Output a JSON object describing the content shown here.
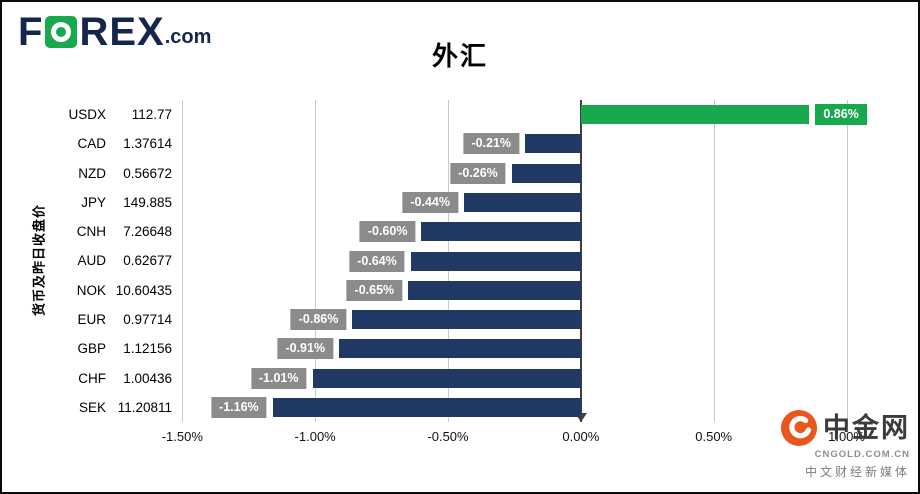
{
  "header": {
    "logo_f": "F",
    "logo_rest": "REX",
    "logo_suffix": ".com",
    "title": "外汇"
  },
  "chart_data": {
    "type": "bar",
    "orientation": "horizontal",
    "title": "外汇",
    "ylabel": "货币及昨日收盘价",
    "xlim": [
      -1.52,
      1.22
    ],
    "xticks": [
      -1.5,
      -1.0,
      -0.5,
      0.0,
      0.5,
      1.0
    ],
    "xtick_labels": [
      "-1.50%",
      "-1.00%",
      "-0.50%",
      "0.00%",
      "0.50%",
      "1.00%"
    ],
    "bar_color": "#1f3864",
    "positive_color": "#18a84d",
    "label_box_color": "#8b8b8b",
    "rows": [
      {
        "code": "USDX",
        "price": "112.77",
        "change": 0.86,
        "label": "0.86%"
      },
      {
        "code": "CAD",
        "price": "1.37614",
        "change": -0.21,
        "label": "-0.21%"
      },
      {
        "code": "NZD",
        "price": "0.56672",
        "change": -0.26,
        "label": "-0.26%"
      },
      {
        "code": "JPY",
        "price": "149.885",
        "change": -0.44,
        "label": "-0.44%"
      },
      {
        "code": "CNH",
        "price": "7.26648",
        "change": -0.6,
        "label": "-0.60%"
      },
      {
        "code": "AUD",
        "price": "0.62677",
        "change": -0.64,
        "label": "-0.64%"
      },
      {
        "code": "NOK",
        "price": "10.60435",
        "change": -0.65,
        "label": "-0.65%"
      },
      {
        "code": "EUR",
        "price": "0.97714",
        "change": -0.86,
        "label": "-0.86%"
      },
      {
        "code": "GBP",
        "price": "1.12156",
        "change": -0.91,
        "label": "-0.91%"
      },
      {
        "code": "CHF",
        "price": "1.00436",
        "change": -1.01,
        "label": "-1.01%"
      },
      {
        "code": "SEK",
        "price": "11.20811",
        "change": -1.16,
        "label": "-1.16%"
      }
    ]
  },
  "watermark": {
    "name": "中金网",
    "domain": "CNGOLD.COM.CN",
    "tagline": "中文财经新媒体",
    "icon_color": "#e8571d"
  }
}
